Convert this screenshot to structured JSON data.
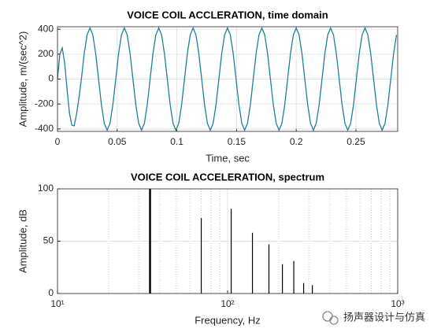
{
  "watermark": "扬声器设计与仿真",
  "chart_data": [
    {
      "type": "line",
      "title": "VOICE COIL ACCLERATION, time domain",
      "x_label": "Time, sec",
      "y_label": "Amplitude, m/(sec^2)",
      "grid": true,
      "xlim": [
        0,
        0.285
      ],
      "xticks": [
        0,
        0.05,
        0.1,
        0.15,
        0.2,
        0.25
      ],
      "ylim": [
        -420,
        420
      ],
      "yticks": [
        -400,
        -200,
        0,
        200,
        400
      ],
      "series": [
        {
          "color": "#1f7f9a",
          "x": [
            0,
            0.002,
            0.004,
            0.006,
            0.008,
            0.01,
            0.012,
            0.014,
            0.016,
            0.018,
            0.02,
            0.0224,
            0.0248,
            0.0272,
            0.0296,
            0.032,
            0.0344,
            0.0368,
            0.0392,
            0.0416,
            0.044,
            0.0464,
            0.0488,
            0.0512,
            0.0536,
            0.056,
            0.0584,
            0.0608,
            0.0632,
            0.0656,
            0.068,
            0.0704,
            0.0728,
            0.0752,
            0.0776,
            0.08,
            0.0824,
            0.0848,
            0.0872,
            0.0896,
            0.092,
            0.0944,
            0.0968,
            0.0992,
            0.1016,
            0.104,
            0.1064,
            0.1088,
            0.1112,
            0.1136,
            0.116,
            0.1184,
            0.1208,
            0.1232,
            0.1256,
            0.128,
            0.1304,
            0.1328,
            0.1352,
            0.1376,
            0.14,
            0.1424,
            0.1448,
            0.1472,
            0.1496,
            0.152,
            0.1544,
            0.1568,
            0.1592,
            0.1616,
            0.164,
            0.1664,
            0.1688,
            0.1712,
            0.1736,
            0.176,
            0.1784,
            0.1808,
            0.1832,
            0.1856,
            0.188,
            0.1904,
            0.1928,
            0.1952,
            0.1976,
            0.2,
            0.2024,
            0.2048,
            0.2072,
            0.2096,
            0.212,
            0.2144,
            0.2168,
            0.2192,
            0.2216,
            0.224,
            0.2264,
            0.2288,
            0.2312,
            0.2336,
            0.236,
            0.2384,
            0.2408,
            0.2432,
            0.2456,
            0.248,
            0.2504,
            0.2528,
            0.2552,
            0.2576,
            0.26,
            0.2624,
            0.2648,
            0.2672,
            0.2696,
            0.272,
            0.2744,
            0.2768,
            0.2792,
            0.2816,
            0.284
          ],
          "values": [
            0,
            200,
            250,
            130,
            -80,
            -270,
            -370,
            -375,
            -280,
            -150,
            0,
            205,
            355,
            410,
            355,
            205,
            0,
            -205,
            -355,
            -410,
            -355,
            -205,
            0,
            205,
            355,
            410,
            355,
            205,
            0,
            -205,
            -355,
            -410,
            -355,
            -205,
            0,
            205,
            355,
            410,
            355,
            205,
            0,
            -205,
            -355,
            -410,
            -355,
            -205,
            0,
            205,
            355,
            410,
            355,
            205,
            0,
            -205,
            -355,
            -410,
            -355,
            -205,
            0,
            205,
            355,
            410,
            355,
            205,
            0,
            -205,
            -355,
            -410,
            -355,
            -205,
            0,
            205,
            355,
            410,
            355,
            205,
            0,
            -205,
            -355,
            -410,
            -355,
            -205,
            0,
            205,
            355,
            410,
            355,
            205,
            0,
            -205,
            -355,
            -410,
            -355,
            -205,
            0,
            205,
            355,
            410,
            355,
            205,
            0,
            -205,
            -355,
            -410,
            -355,
            -205,
            0,
            205,
            355,
            410,
            355,
            205,
            0,
            -205,
            -355,
            -410,
            -355,
            -205,
            0,
            205,
            355
          ]
        }
      ]
    },
    {
      "type": "stem",
      "title": "VOICE COIL ACCELERATION, spectrum",
      "x_label": "Frequency, Hz",
      "y_label": "Amplitude, dB",
      "grid": true,
      "xscale": "log",
      "xlim": [
        10,
        1000
      ],
      "xticks": [
        {
          "value": 10,
          "label": "10¹"
        },
        {
          "value": 100,
          "label": "10²"
        },
        {
          "value": 1000,
          "label": "10³"
        }
      ],
      "minor_xticks": [
        20,
        30,
        40,
        50,
        60,
        70,
        80,
        90,
        200,
        300,
        400,
        500,
        600,
        700,
        800,
        900
      ],
      "ylim": [
        0,
        100
      ],
      "yticks": [
        0,
        50,
        100
      ],
      "series": [
        {
          "color": "#000000",
          "x": [
            35,
            70,
            105,
            140,
            175,
            210,
            245,
            280,
            315
          ],
          "values": [
            100,
            72,
            81,
            58,
            47,
            28,
            31,
            10,
            8
          ]
        }
      ]
    }
  ]
}
